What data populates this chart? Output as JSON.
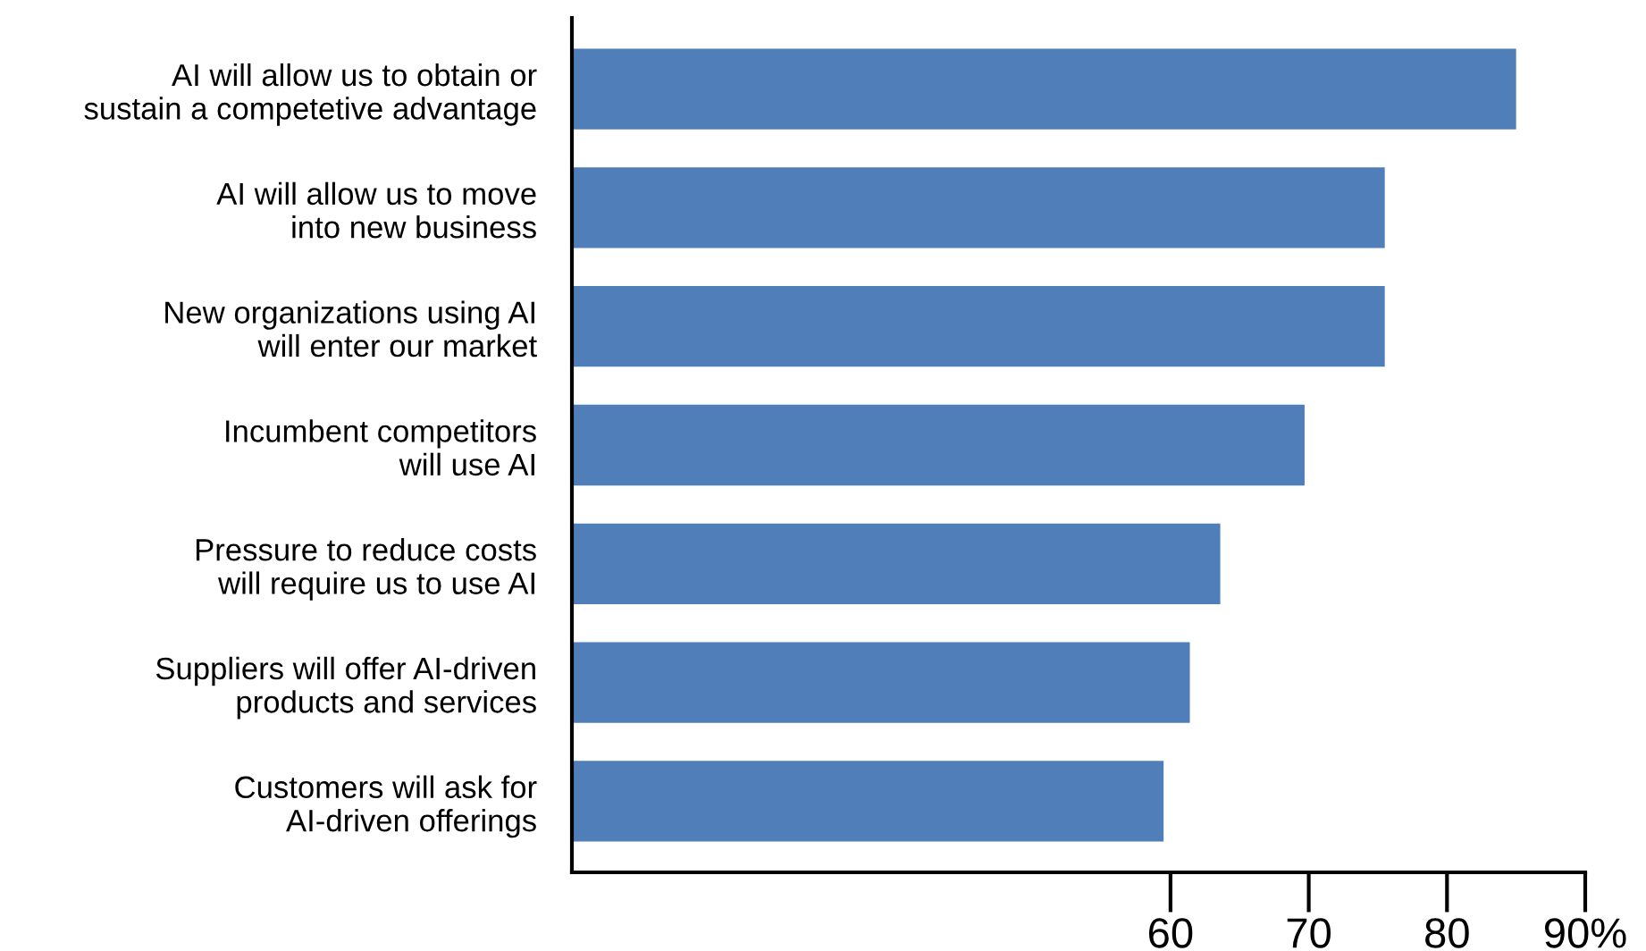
{
  "chart_data": {
    "type": "bar",
    "orientation": "horizontal",
    "categories": [
      "AI will allow us to obtain or\nsustain a competetive advantage",
      "AI will allow us to move\ninto new business",
      "New organizations using AI\nwill enter our market",
      "Incumbent competitors\nwill use AI",
      "Pressure to reduce costs\nwill require us to use AI",
      "Suppliers will offer AI-driven\nproducts and services",
      "Customers will ask for\nAI-driven offerings"
    ],
    "values": [
      85.0,
      75.5,
      75.5,
      69.7,
      63.6,
      61.4,
      59.5
    ],
    "color": "#4f7eb8",
    "xlim": [
      16.7,
      90
    ],
    "xticks": [
      60,
      70,
      80,
      {
        "value": 90,
        "label": "90%"
      }
    ],
    "grid": false,
    "legend": false
  }
}
